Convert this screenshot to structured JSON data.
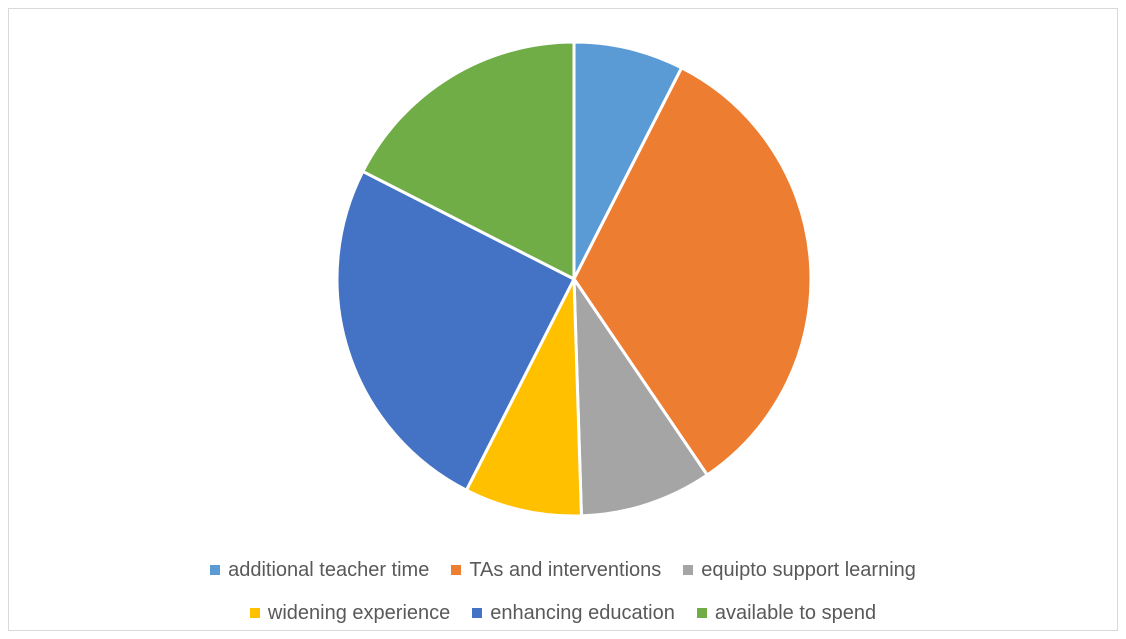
{
  "chart_data": {
    "type": "pie",
    "title": "",
    "start_angle_deg": 0,
    "direction": "clockwise",
    "slices": [
      {
        "label": "additional teacher time",
        "value": 7.5,
        "color": "#5B9BD5"
      },
      {
        "label": "TAs and interventions",
        "value": 33.0,
        "color": "#ED7D31"
      },
      {
        "label": "equipto support learning",
        "value": 9.0,
        "color": "#A5A5A5"
      },
      {
        "label": "widening experience",
        "value": 8.0,
        "color": "#FFC000"
      },
      {
        "label": "enhancing education",
        "value": 25.0,
        "color": "#4472C4"
      },
      {
        "label": "available to spend",
        "value": 17.5,
        "color": "#70AD47"
      }
    ],
    "legend": {
      "position": "bottom"
    }
  }
}
